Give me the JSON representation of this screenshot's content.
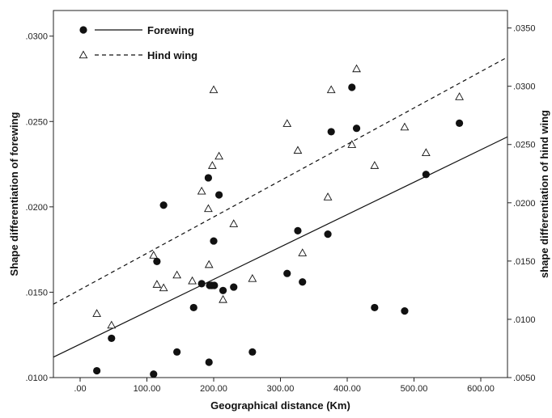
{
  "chart_data": {
    "type": "scatter",
    "xlabel": "Geographical distance (Km)",
    "ylabel_left": "Shape differentiation of forewing",
    "ylabel_right": "shape differentiation of hind wing",
    "xlim": [
      -40,
      640
    ],
    "ylim_left": [
      0.01,
      0.0315
    ],
    "ylim_right": [
      0.005,
      0.0365
    ],
    "x_ticks": [
      0,
      100,
      200,
      300,
      400,
      500,
      600
    ],
    "x_tick_labels": [
      ".00",
      "100.00",
      "200.00",
      "300.00",
      "400.00",
      "500.00",
      "600.00"
    ],
    "y_left_ticks": [
      0.01,
      0.015,
      0.02,
      0.025,
      0.03
    ],
    "y_left_tick_labels": [
      ".0100",
      ".0150",
      ".0200",
      ".0250",
      ".0300"
    ],
    "y_right_ticks": [
      0.005,
      0.01,
      0.015,
      0.02,
      0.025,
      0.03,
      0.035
    ],
    "y_right_tick_labels": [
      ".0050",
      ".0100",
      ".0150",
      ".0200",
      ".0250",
      ".0300",
      ".0350"
    ],
    "grid": false,
    "legend_position": "top-left",
    "series": [
      {
        "name": "Forewing",
        "axis": "left",
        "marker": "filled-circle",
        "line_style": "solid",
        "color": "#111111",
        "x": [
          25,
          47,
          110,
          115,
          125,
          145,
          170,
          182,
          192,
          193,
          194,
          197,
          200,
          201,
          208,
          214,
          230,
          258,
          310,
          326,
          333,
          371,
          376,
          407,
          414,
          441,
          486,
          518,
          568
        ],
        "y": [
          0.0104,
          0.0123,
          0.0102,
          0.0168,
          0.0201,
          0.0115,
          0.0141,
          0.0155,
          0.0217,
          0.0109,
          0.0154,
          0.0154,
          0.018,
          0.0154,
          0.0207,
          0.0151,
          0.0153,
          0.0115,
          0.0161,
          0.0186,
          0.0156,
          0.0184,
          0.0244,
          0.027,
          0.0246,
          0.0141,
          0.0139,
          0.0219,
          0.0249
        ],
        "fit_line": {
          "x": [
            -40,
            640
          ],
          "y": [
            0.0112,
            0.0241
          ]
        }
      },
      {
        "name": "Hind wing",
        "axis": "right",
        "marker": "open-triangle",
        "line_style": "dashed",
        "color": "#111111",
        "x": [
          25,
          47,
          110,
          115,
          125,
          145,
          168,
          182,
          192,
          193,
          198,
          200,
          208,
          214,
          230,
          258,
          310,
          326,
          333,
          371,
          376,
          407,
          414,
          441,
          486,
          518,
          568
        ],
        "y": [
          0.0105,
          0.0095,
          0.0155,
          0.013,
          0.0127,
          0.0138,
          0.0133,
          0.021,
          0.0195,
          0.0147,
          0.0232,
          0.0297,
          0.024,
          0.0117,
          0.0182,
          0.0135,
          0.0268,
          0.0245,
          0.0157,
          0.0205,
          0.0297,
          0.025,
          0.0315,
          0.0232,
          0.0265,
          0.0243,
          0.0291
        ],
        "fit_line": {
          "x": [
            -40,
            640
          ],
          "y": [
            0.0113,
            0.0325
          ]
        }
      }
    ]
  }
}
